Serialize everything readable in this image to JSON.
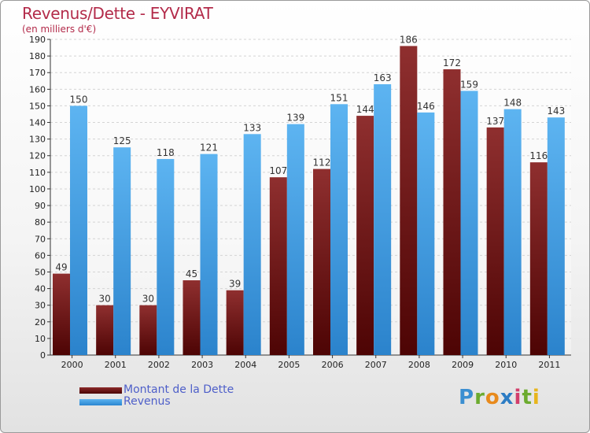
{
  "header": {
    "title": "Revenus/Dette - EYVIRAT",
    "subtitle": "(en milliers d'€)"
  },
  "chart_data": {
    "type": "bar",
    "title": "Revenus/Dette - EYVIRAT",
    "subtitle": "(en milliers d'€)",
    "categories": [
      "2000",
      "2001",
      "2002",
      "2003",
      "2004",
      "2005",
      "2006",
      "2007",
      "2008",
      "2009",
      "2010",
      "2011"
    ],
    "series": [
      {
        "name": "Montant de la Dette",
        "color": "#7a1e1e",
        "values": [
          49,
          30,
          30,
          45,
          39,
          107,
          112,
          144,
          186,
          172,
          137,
          116
        ]
      },
      {
        "name": "Revenus",
        "color": "#3f9ee6",
        "values": [
          150,
          125,
          118,
          121,
          133,
          139,
          151,
          163,
          146,
          159,
          148,
          143
        ]
      }
    ],
    "ylim": [
      0,
      190
    ],
    "yticks": [
      0,
      10,
      20,
      30,
      40,
      50,
      60,
      70,
      80,
      90,
      100,
      110,
      120,
      130,
      140,
      150,
      160,
      170,
      180,
      190
    ],
    "grid": true,
    "legend_position": "bottom-left"
  },
  "legend": {
    "items": [
      {
        "label": "Montant de la Dette",
        "color": "#6b1414"
      },
      {
        "label": "Revenus",
        "color": "#3f9ee6"
      }
    ]
  },
  "logo": {
    "letters": [
      "P",
      "r",
      "o",
      "x",
      "i",
      "t",
      "i"
    ]
  }
}
